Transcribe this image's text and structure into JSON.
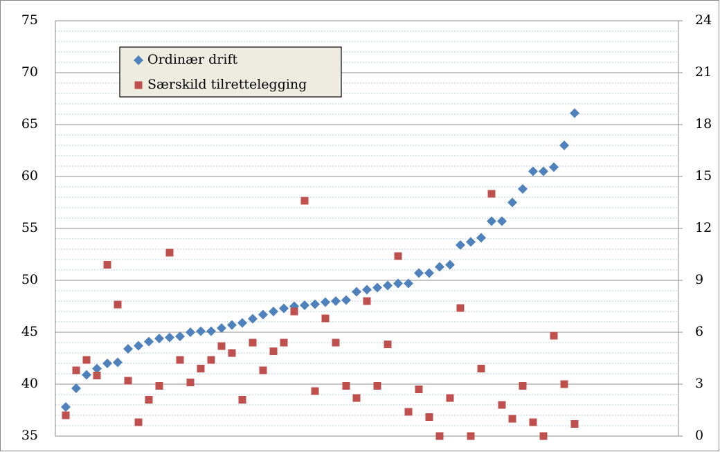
{
  "chart_data": {
    "type": "scatter",
    "categories": [
      null,
      null,
      null,
      null,
      null,
      null,
      null,
      null,
      null,
      null,
      null,
      null,
      null,
      null,
      null,
      null,
      null,
      null,
      null,
      null,
      null,
      null,
      null,
      null,
      null,
      null,
      null,
      null,
      null,
      null,
      null,
      null,
      null,
      null,
      null,
      null,
      null,
      null,
      null,
      null,
      null,
      null,
      null,
      null,
      null,
      null,
      null,
      null,
      null,
      null
    ],
    "series": [
      {
        "name": "Ordinær drift",
        "color": "#4f81bd",
        "marker": "diamond",
        "values": [
          37.8,
          39.6,
          40.9,
          41.5,
          42.0,
          42.1,
          43.4,
          43.7,
          44.1,
          44.4,
          44.5,
          44.6,
          45.0,
          45.1,
          45.1,
          45.4,
          45.7,
          45.9,
          46.3,
          46.7,
          47.0,
          47.3,
          47.5,
          47.6,
          47.7,
          47.9,
          48.0,
          48.1,
          48.9,
          49.1,
          49.3,
          49.5,
          49.7,
          49.7,
          50.7,
          50.7,
          51.3,
          51.5,
          53.4,
          53.7,
          54.1,
          55.7,
          55.7,
          57.5,
          58.8,
          60.5,
          60.5,
          60.9,
          63.0,
          66.1
        ]
      },
      {
        "name": "Særskild tilrettelegging",
        "color": "#c0504d",
        "marker": "square",
        "axis": "y2",
        "values": [
          1.2,
          3.8,
          4.4,
          3.5,
          9.9,
          7.6,
          3.2,
          0.8,
          2.1,
          2.9,
          10.6,
          4.4,
          3.1,
          3.9,
          4.4,
          5.2,
          4.8,
          2.1,
          5.4,
          3.8,
          4.9,
          5.4,
          7.2,
          13.6,
          2.6,
          6.8,
          5.4,
          2.9,
          2.2,
          7.8,
          2.9,
          5.3,
          10.4,
          1.4,
          2.7,
          1.1,
          0,
          2.2,
          7.4,
          0,
          3.9,
          14.0,
          1.8,
          1.0,
          2.9,
          0.8,
          0,
          5.8,
          3.0,
          0.7
        ]
      }
    ],
    "ylim": [
      35,
      75
    ],
    "yticks": [
      35,
      40,
      45,
      50,
      55,
      60,
      65,
      70,
      75
    ],
    "y2lim": [
      0,
      24
    ],
    "y2ticks": [
      0,
      3,
      6,
      9,
      12,
      15,
      18,
      21,
      24
    ],
    "grid": true,
    "minor_grid": true,
    "legend": "upper left"
  }
}
